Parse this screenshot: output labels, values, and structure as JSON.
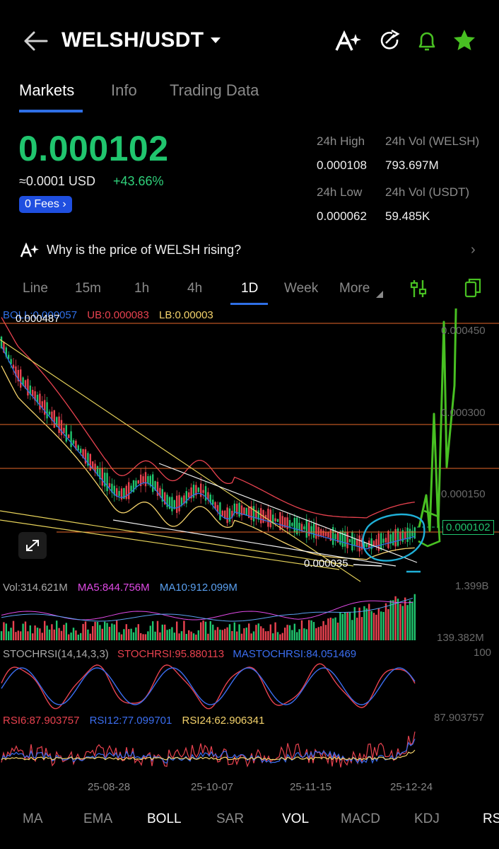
{
  "header": {
    "pair": "WELSH/USDT"
  },
  "tabs": [
    "Markets",
    "Info",
    "Trading Data"
  ],
  "price": {
    "last": "0.000102",
    "usd": "≈0.0001 USD",
    "change": "+43.66%",
    "fees": "0 Fees"
  },
  "stats": {
    "high_label": "24h High",
    "high_value": "0.000108",
    "vol_base_label": "24h Vol (WELSH)",
    "vol_base_value": "793.697M",
    "low_label": "24h Low",
    "low_value": "0.000062",
    "vol_quote_label": "24h Vol (USDT)",
    "vol_quote_value": "59.485K"
  },
  "banner": {
    "text": "Why is the price of WELSH rising?"
  },
  "timeframes": [
    "Line",
    "15m",
    "1h",
    "4h",
    "1D",
    "Week",
    "More"
  ],
  "active_timeframe": "1D",
  "boll": {
    "boll": "BOLL:0.000057",
    "ub": "UB:0.000083",
    "lb": "LB:0.00003"
  },
  "main_chart": {
    "high_marker": "0.000487",
    "low_marker": "0.000035",
    "axis": [
      "0.000450",
      "0.000300",
      "0.000150"
    ],
    "current_price": "0.000102"
  },
  "volume": {
    "vol": "Vol:314.621M",
    "ma5": "MA5:844.756M",
    "ma10": "MA10:912.099M",
    "axis_top": "1.399B",
    "axis_bottom": "139.382M"
  },
  "stochrsi": {
    "title": "STOCHRSI(14,14,3,3)",
    "value": "STOCHRSI:95.880113",
    "ma": "MASTOCHRSI:84.051469",
    "axis_top": "100"
  },
  "rsi": {
    "rsi6": "RSI6:87.903757",
    "rsi12": "RSI12:77.099701",
    "rsi24": "RSI24:62.906341",
    "axis_top": "87.903757"
  },
  "dates": [
    "25-08-28",
    "25-10-07",
    "25-11-15",
    "25-12-24"
  ],
  "indicators": [
    "MA",
    "EMA",
    "BOLL",
    "SAR",
    "VOL",
    "MACD",
    "KDJ",
    "RS"
  ],
  "active_indicators": [
    "BOLL",
    "VOL"
  ],
  "colors": {
    "up": "#20c56e",
    "down": "#e8424f",
    "accent_tab": "#2f6fe6",
    "boll_mid": "#2f6fe6",
    "boll_upper": "#e8424f",
    "boll_lower": "#f5d36b",
    "annotation": "#48c022",
    "circle": "#1fb0d8"
  }
}
